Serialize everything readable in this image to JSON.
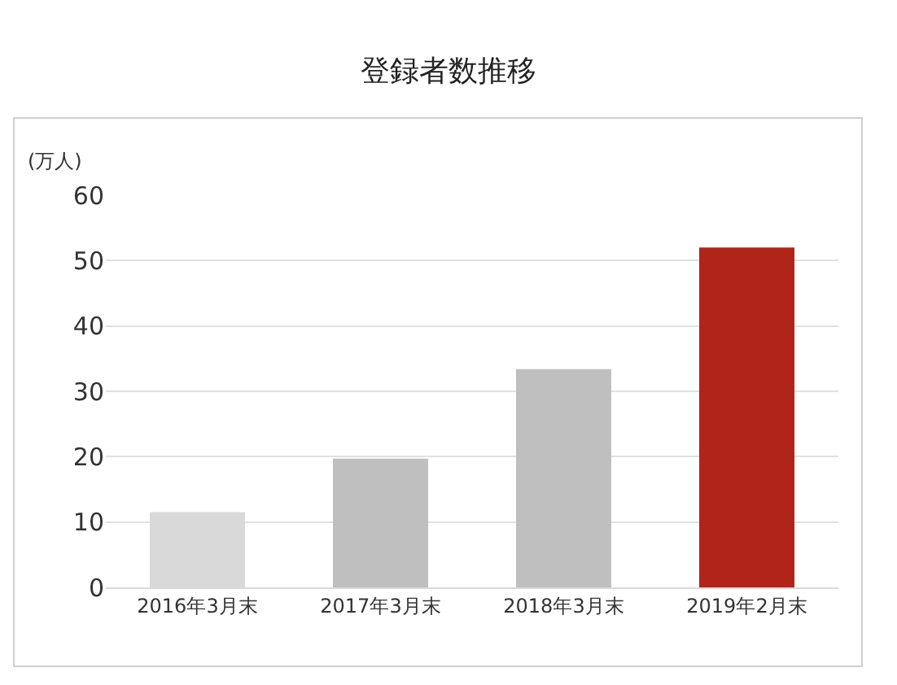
{
  "chart_data": {
    "type": "bar",
    "title": "登録者数推移",
    "ylabel": "(万人)",
    "categories": [
      "2016年3月末",
      "2017年3月末",
      "2018年3月末",
      "2019年2月末"
    ],
    "values": [
      11.5,
      19.7,
      33.4,
      52
    ],
    "colors": [
      "#d9d9d9",
      "#bfbfbf",
      "#bfbfbf",
      "#b0241a"
    ],
    "ylim": [
      0,
      60
    ],
    "yticks": [
      0,
      10,
      20,
      30,
      40,
      50,
      60
    ],
    "grid": "y",
    "legend": false
  }
}
